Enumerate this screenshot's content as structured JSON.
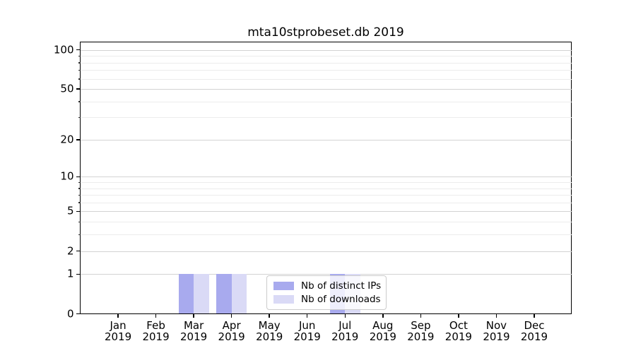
{
  "title": "mta10stprobeset.db 2019",
  "chart_data": {
    "type": "bar",
    "title": "mta10stprobeset.db 2019",
    "categories": [
      "Jan",
      "Feb",
      "Mar",
      "Apr",
      "May",
      "Jun",
      "Jul",
      "Aug",
      "Sep",
      "Oct",
      "Nov",
      "Dec"
    ],
    "category_year": "2019",
    "series": [
      {
        "name": "Nb of distinct IPs",
        "color": "#a8aaee",
        "values": [
          0,
          0,
          1,
          1,
          0,
          0,
          1,
          0,
          0,
          0,
          0,
          0
        ]
      },
      {
        "name": "Nb of downloads",
        "color": "#dadaf6",
        "values": [
          0,
          0,
          1,
          1,
          0,
          0,
          1,
          0,
          0,
          0,
          0,
          0
        ]
      }
    ],
    "xlabel": "",
    "ylabel": "",
    "yscale": "log1p",
    "ylim": [
      0,
      115
    ],
    "y_major_ticks": [
      0,
      1,
      2,
      5,
      10,
      20,
      50,
      100
    ],
    "y_minor_ticks": [
      3,
      4,
      6,
      7,
      8,
      9,
      30,
      40,
      60,
      70,
      80,
      90
    ],
    "grid": true,
    "legend_position": "lower-center"
  },
  "colors": {
    "grid_major": "#d3d3d3",
    "grid_minor": "#ececec",
    "spine": "#000000",
    "text": "#000000",
    "legend_border": "#cccccc",
    "background": "#ffffff"
  }
}
